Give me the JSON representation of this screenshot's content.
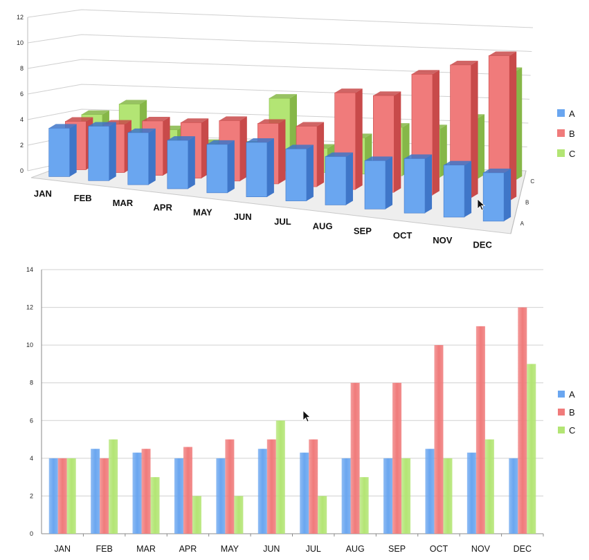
{
  "colors": {
    "A": "#6aa6f0",
    "B": "#f07b7b",
    "C": "#b3e574",
    "A_dark": "#3f76c8",
    "B_dark": "#c84a4a",
    "C_dark": "#86b748"
  },
  "chart_data": [
    {
      "type": "bar",
      "variant": "3d-clustered-depth",
      "categories": [
        "JAN",
        "FEB",
        "MAR",
        "APR",
        "MAY",
        "JUN",
        "JUL",
        "AUG",
        "SEP",
        "OCT",
        "NOV",
        "DEC"
      ],
      "series": [
        {
          "name": "A",
          "values": [
            4,
            4.5,
            4.3,
            4,
            4,
            4.5,
            4.3,
            4,
            4,
            4.5,
            4.3,
            4
          ]
        },
        {
          "name": "B",
          "values": [
            4,
            4,
            4.5,
            4.6,
            5,
            5,
            5,
            8,
            8,
            10,
            11,
            12
          ]
        },
        {
          "name": "C",
          "values": [
            4,
            5,
            3,
            2,
            2,
            6,
            2,
            3,
            4,
            4,
            5,
            9
          ]
        }
      ],
      "ylim": [
        0,
        12
      ],
      "yticks": [
        "0",
        "2",
        "4",
        "6",
        "8",
        "10",
        "12"
      ],
      "depth_labels": [
        "A",
        "B",
        "C"
      ],
      "legend": {
        "placement": "right",
        "entries": [
          "A",
          "B",
          "C"
        ]
      },
      "grid": true
    },
    {
      "type": "bar",
      "categories": [
        "JAN",
        "FEB",
        "MAR",
        "APR",
        "MAY",
        "JUN",
        "JUL",
        "AUG",
        "SEP",
        "OCT",
        "NOV",
        "DEC"
      ],
      "series": [
        {
          "name": "A",
          "values": [
            4,
            4.5,
            4.3,
            4,
            4,
            4.5,
            4.3,
            4,
            4,
            4.5,
            4.3,
            4
          ]
        },
        {
          "name": "B",
          "values": [
            4,
            4,
            4.5,
            4.6,
            5,
            5,
            5,
            8,
            8,
            10,
            11,
            12
          ]
        },
        {
          "name": "C",
          "values": [
            4,
            5,
            3,
            2,
            2,
            6,
            2,
            3,
            4,
            4,
            5,
            9
          ]
        }
      ],
      "ylim": [
        0,
        14
      ],
      "yticks": [
        "0",
        "2",
        "4",
        "6",
        "8",
        "10",
        "12",
        "14"
      ],
      "legend": {
        "placement": "right",
        "entries": [
          "A",
          "B",
          "C"
        ]
      },
      "grid": true
    }
  ]
}
